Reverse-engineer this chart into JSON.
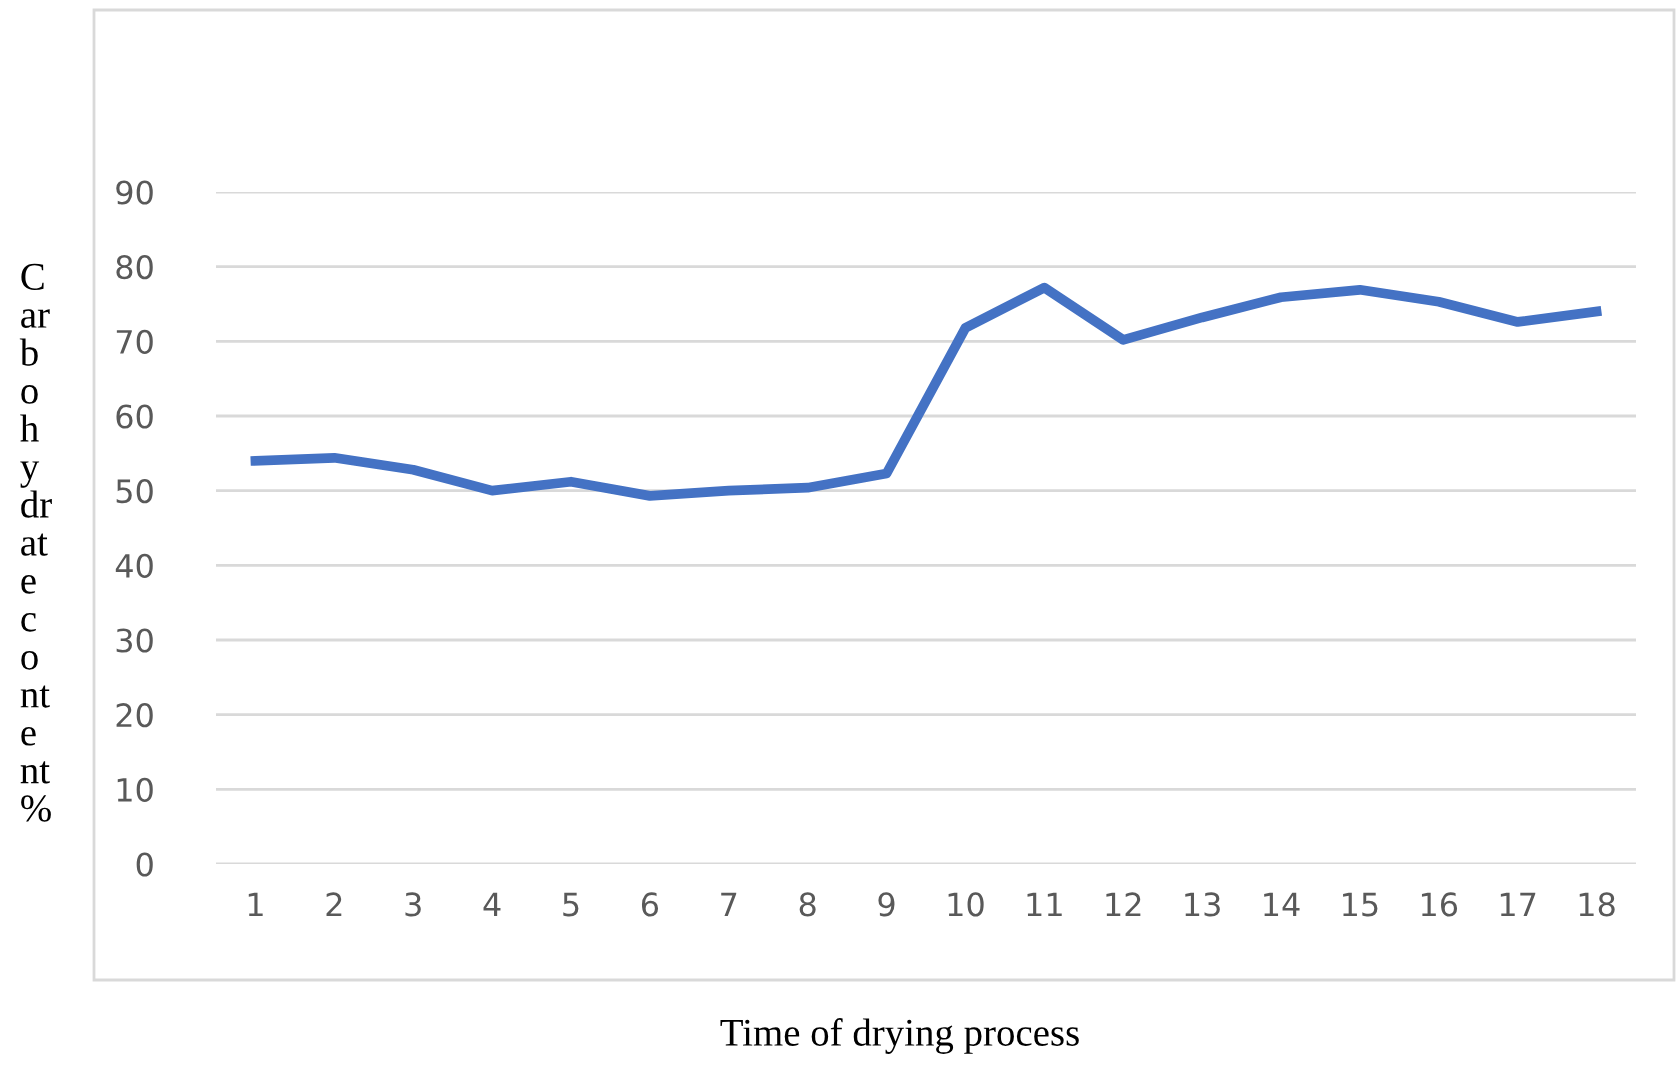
{
  "chart_data": {
    "type": "line",
    "xlabel": "Time of drying process",
    "ylabel": "C\nar\nb\no\nh\ny\ndr\nat\ne\nc\no\nnt\ne\nnt\n%",
    "categories": [
      "1",
      "2",
      "3",
      "4",
      "5",
      "6",
      "7",
      "8",
      "9",
      "10",
      "11",
      "12",
      "13",
      "14",
      "15",
      "16",
      "17",
      "18"
    ],
    "series": [
      {
        "color": "#4472c4",
        "values": [
          54,
          54.4,
          52.8,
          50,
          51.2,
          49.3,
          50,
          50.4,
          52.3,
          71.8,
          77.2,
          70.2,
          73.2,
          75.9,
          76.9,
          75.3,
          72.6,
          74
        ]
      }
    ],
    "ylim": [
      0,
      90
    ],
    "yticks": [
      0,
      10,
      20,
      30,
      40,
      50,
      60,
      70,
      80,
      90
    ],
    "grid": "y",
    "legend": false,
    "marker": "none",
    "line_style": "solid"
  }
}
